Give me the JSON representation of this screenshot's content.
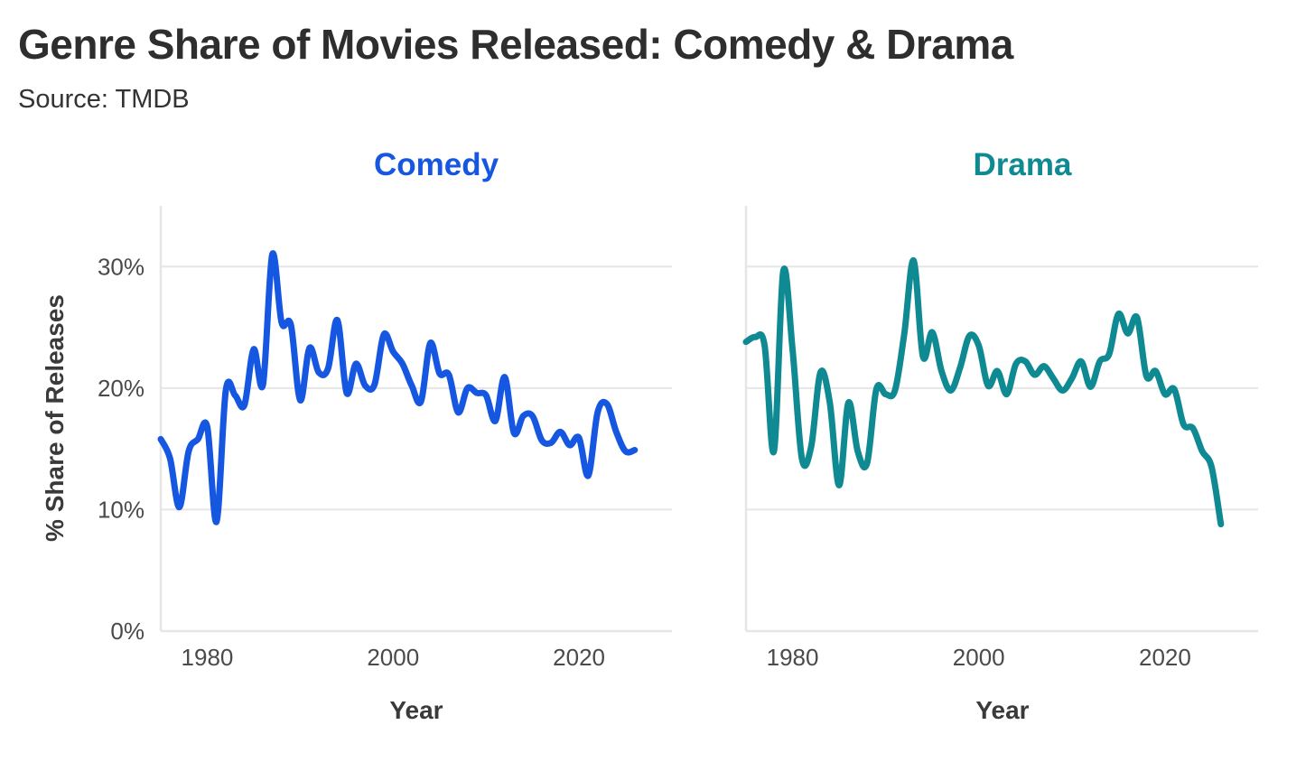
{
  "title": "Genre Share of Movies Released: Comedy & Drama",
  "subtitle": "Source: TMDB",
  "colors": {
    "comedy": "#1557e0",
    "drama": "#0f8a93",
    "grid": "#e6e6e6",
    "title_text": "#2e2e2e"
  },
  "chart_data": [
    {
      "type": "line",
      "panel_title": "Comedy",
      "xlabel": "Year",
      "ylabel": "% Share of Releases",
      "xlim": [
        1975,
        2030
      ],
      "ylim": [
        0,
        35
      ],
      "x_ticks": [
        1980,
        2000,
        2020
      ],
      "x_tick_labels": [
        "1980",
        "2000",
        "2020"
      ],
      "y_ticks": [
        0,
        10,
        20,
        30
      ],
      "y_tick_labels": [
        "0%",
        "10%",
        "20%",
        "30%"
      ],
      "grid": true,
      "series": [
        {
          "name": "Comedy",
          "x": [
            1975,
            1976,
            1977,
            1978,
            1979,
            1980,
            1981,
            1982,
            1983,
            1984,
            1985,
            1986,
            1987,
            1988,
            1989,
            1990,
            1991,
            1992,
            1993,
            1994,
            1995,
            1996,
            1997,
            1998,
            1999,
            2000,
            2001,
            2002,
            2003,
            2004,
            2005,
            2006,
            2007,
            2008,
            2009,
            2010,
            2011,
            2012,
            2013,
            2014,
            2015,
            2016,
            2017,
            2018,
            2019,
            2020,
            2021,
            2022,
            2023,
            2024,
            2025,
            2026
          ],
          "values": [
            15.8,
            14.2,
            10.2,
            14.8,
            15.8,
            16.8,
            9.0,
            19.8,
            19.4,
            18.6,
            23.2,
            20.3,
            31.0,
            25.4,
            25.2,
            19.0,
            23.3,
            21.3,
            21.6,
            25.6,
            19.6,
            22.0,
            20.2,
            20.3,
            24.4,
            23.0,
            22.0,
            20.2,
            18.9,
            23.7,
            21.2,
            21.1,
            18.0,
            20.0,
            19.6,
            19.4,
            17.3,
            20.9,
            16.3,
            17.7,
            17.7,
            15.7,
            15.5,
            16.4,
            15.3,
            15.9,
            12.8,
            18.0,
            18.7,
            16.4,
            14.8,
            14.9
          ]
        }
      ]
    },
    {
      "type": "line",
      "panel_title": "Drama",
      "xlabel": "Year",
      "ylabel": "",
      "xlim": [
        1975,
        2030
      ],
      "ylim": [
        0,
        35
      ],
      "x_ticks": [
        1980,
        2000,
        2020
      ],
      "x_tick_labels": [
        "1980",
        "2000",
        "2020"
      ],
      "y_ticks": [
        0,
        10,
        20,
        30
      ],
      "grid": true,
      "series": [
        {
          "name": "Drama",
          "x": [
            1975,
            1976,
            1977,
            1978,
            1979,
            1980,
            1981,
            1982,
            1983,
            1984,
            1985,
            1986,
            1987,
            1988,
            1989,
            1990,
            1991,
            1992,
            1993,
            1994,
            1995,
            1996,
            1997,
            1998,
            1999,
            2000,
            2001,
            2002,
            2003,
            2004,
            2005,
            2006,
            2007,
            2008,
            2009,
            2010,
            2011,
            2012,
            2013,
            2014,
            2015,
            2016,
            2017,
            2018,
            2019,
            2020,
            2021,
            2022,
            2023,
            2024,
            2025,
            2026
          ],
          "values": [
            23.8,
            24.2,
            23.5,
            14.8,
            29.6,
            23.2,
            14.2,
            15.2,
            21.3,
            18.8,
            12.0,
            18.8,
            14.8,
            13.8,
            19.9,
            19.5,
            19.8,
            24.5,
            30.5,
            22.6,
            24.6,
            21.4,
            19.8,
            21.7,
            24.3,
            23.5,
            20.2,
            21.4,
            19.5,
            22.0,
            22.2,
            21.1,
            21.8,
            20.8,
            19.8,
            20.8,
            22.2,
            20.1,
            22.2,
            22.8,
            26.1,
            24.5,
            25.8,
            21.0,
            21.4,
            19.5,
            19.9,
            17.0,
            16.7,
            14.8,
            13.5,
            8.8
          ]
        }
      ]
    }
  ]
}
